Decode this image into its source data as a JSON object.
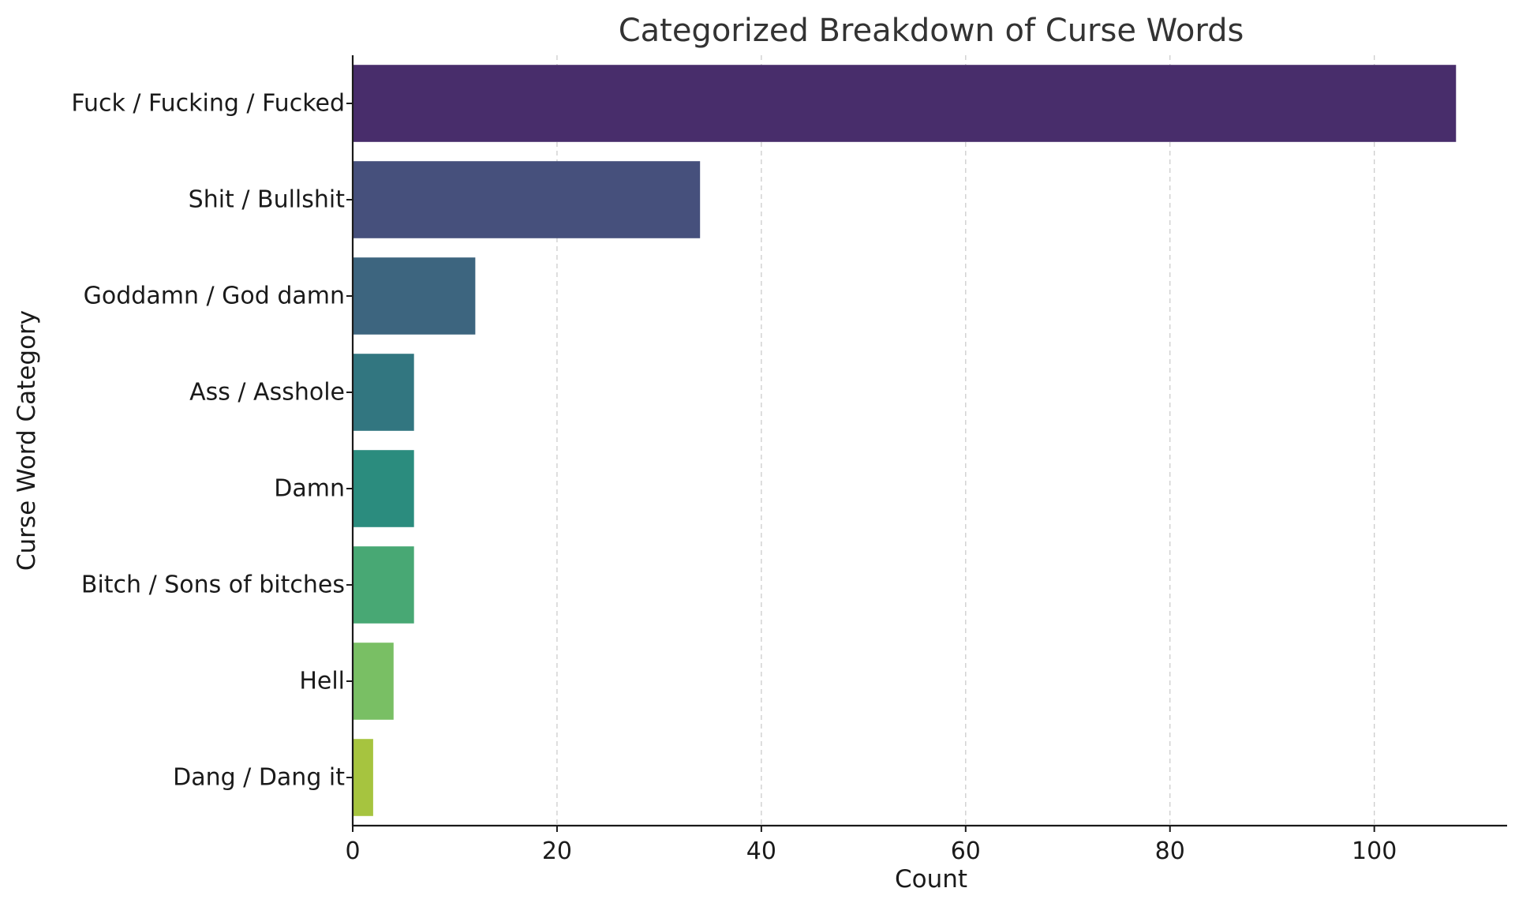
{
  "chart_data": {
    "type": "bar",
    "orientation": "horizontal",
    "title": "Categorized Breakdown of Curse Words",
    "xlabel": "Count",
    "ylabel": "Curse Word Category",
    "xlim": [
      0,
      113
    ],
    "xticks": [
      0,
      20,
      40,
      60,
      80,
      100
    ],
    "grid": "vertical dashed",
    "categories": [
      "Fuck / Fucking / Fucked",
      "Shit / Bullshit",
      "Goddamn / God damn",
      "Ass / Asshole",
      "Damn",
      "Bitch / Sons of bitches",
      "Hell",
      "Dang / Dang it"
    ],
    "values": [
      108,
      34,
      12,
      6,
      6,
      6,
      4,
      2
    ],
    "colors": [
      "#482d6b",
      "#46507c",
      "#3d657f",
      "#327680",
      "#2b8c7e",
      "#48a874",
      "#79bf64",
      "#a6c43f"
    ]
  }
}
